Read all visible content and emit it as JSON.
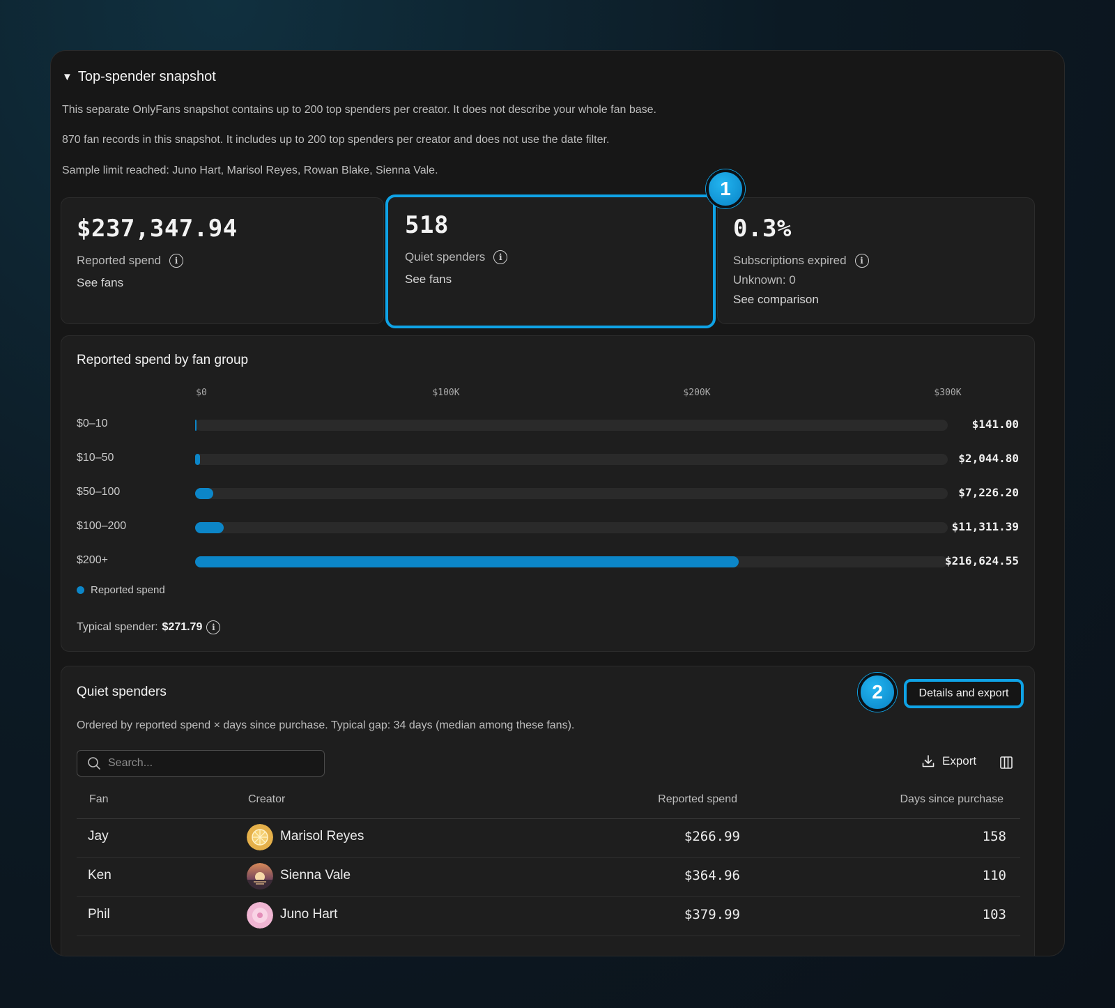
{
  "panel": {
    "summary": "Top-spender snapshot",
    "description_1": "This separate OnlyFans snapshot contains up to 200 top spenders per creator. It does not describe your whole fan base.",
    "description_2": "870 fan records in this snapshot. It includes up to 200 top spenders per creator and does not use the date filter.",
    "description_3": "Sample limit reached: Juno Hart, Marisol Reyes, Rowan Blake, Sienna Vale."
  },
  "cards": [
    {
      "value": "$237,347.94",
      "label": "Reported spend",
      "link": "See fans"
    },
    {
      "value": "518",
      "label": "Quiet spenders",
      "link": "See fans"
    },
    {
      "value": "0.3%",
      "label": "Subscriptions expired",
      "sub": "Unknown: 0",
      "link": "See comparison"
    }
  ],
  "badges": {
    "one": "1",
    "two": "2"
  },
  "chart": {
    "title": "Reported spend by fan group",
    "legend": "Reported spend",
    "typical_label": "Typical spender:",
    "typical_value": "$271.79",
    "accent": "#0c86c8"
  },
  "chart_data": {
    "type": "bar",
    "orientation": "horizontal",
    "title": "Reported spend by fan group",
    "categories": [
      "$0–10",
      "$10–50",
      "$50–100",
      "$100–200",
      "$200+"
    ],
    "series": [
      {
        "name": "Reported spend",
        "values": [
          141.0,
          2044.8,
          7226.2,
          11311.39,
          216624.55
        ]
      }
    ],
    "value_labels": [
      "$141.00",
      "$2,044.80",
      "$7,226.20",
      "$11,311.39",
      "$216,624.55"
    ],
    "ticks": [
      "$0",
      "$100K",
      "$200K",
      "$300K"
    ],
    "xlim": [
      0,
      300000
    ],
    "legend_position": "bottom-left"
  },
  "quiet": {
    "title": "Quiet spenders",
    "details_button": "Details and export",
    "description": "Ordered by reported spend × days since purchase. Typical gap: 34 days (median among these fans).",
    "search_placeholder": "Search...",
    "export_label": "Export",
    "columns": [
      "Fan",
      "Creator",
      "Reported spend",
      "Days since purchase"
    ],
    "rows": [
      {
        "fan": "Jay",
        "creator": "Marisol Reyes",
        "spend": "$266.99",
        "days": "158"
      },
      {
        "fan": "Ken",
        "creator": "Sienna Vale",
        "spend": "$364.96",
        "days": "110"
      },
      {
        "fan": "Phil",
        "creator": "Juno Hart",
        "spend": "$379.99",
        "days": "103"
      }
    ]
  }
}
